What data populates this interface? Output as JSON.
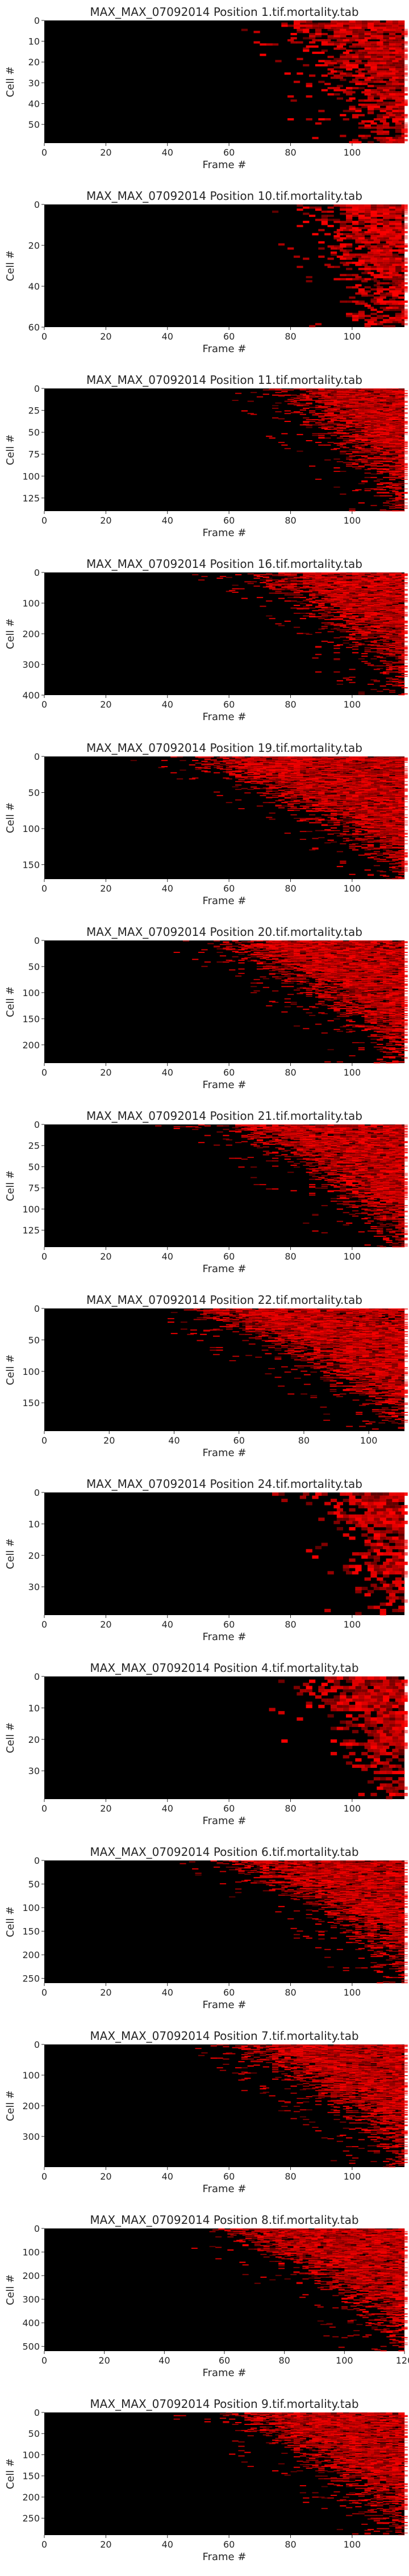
{
  "page": {
    "background": "#ffffff",
    "cell_color": "#ff0000",
    "background_color": "#000000"
  },
  "chart_data": [
    {
      "type": "heatmap",
      "title": "MAX_MAX_07092014 Position 1.tif.mortality.tab",
      "xlabel": "Frame #",
      "ylabel": "Cell #",
      "xlim": [
        0,
        117
      ],
      "ylim": [
        59,
        0
      ],
      "xticks": [
        0,
        20,
        40,
        60,
        80,
        100
      ],
      "yticks": [
        0,
        10,
        20,
        30,
        40,
        50
      ],
      "x_tick_labels": [
        "0",
        "20",
        "40",
        "60",
        "80",
        "100"
      ],
      "y_tick_labels": [
        "0",
        "10",
        "20",
        "30",
        "40",
        "50"
      ],
      "rows": 59,
      "frames": 117,
      "onset_early": 75,
      "onset_late": 100,
      "grid": false
    },
    {
      "type": "heatmap",
      "title": "MAX_MAX_07092014 Position 10.tif.mortality.tab",
      "xlabel": "Frame #",
      "ylabel": "Cell #",
      "xlim": [
        0,
        117
      ],
      "ylim": [
        60,
        0
      ],
      "xticks": [
        0,
        20,
        40,
        60,
        80,
        100
      ],
      "yticks": [
        0,
        20,
        40,
        60
      ],
      "x_tick_labels": [
        "0",
        "20",
        "40",
        "60",
        "80",
        "100"
      ],
      "y_tick_labels": [
        "0",
        "20",
        "40",
        "60"
      ],
      "rows": 60,
      "frames": 117,
      "onset_early": 82,
      "onset_late": 100,
      "grid": false
    },
    {
      "type": "heatmap",
      "title": "MAX_MAX_07092014 Position 11.tif.mortality.tab",
      "xlabel": "Frame #",
      "ylabel": "Cell #",
      "xlim": [
        0,
        117
      ],
      "ylim": [
        140,
        0
      ],
      "xticks": [
        0,
        20,
        40,
        60,
        80,
        100
      ],
      "yticks": [
        0,
        25,
        50,
        75,
        100,
        125
      ],
      "x_tick_labels": [
        "0",
        "20",
        "40",
        "60",
        "80",
        "100"
      ],
      "y_tick_labels": [
        "0",
        "25",
        "50",
        "75",
        "100",
        "125"
      ],
      "rows": 140,
      "frames": 117,
      "onset_early": 70,
      "onset_late": 108,
      "grid": false
    },
    {
      "type": "heatmap",
      "title": "MAX_MAX_07092014 Position 16.tif.mortality.tab",
      "xlabel": "Frame #",
      "ylabel": "Cell #",
      "xlim": [
        0,
        117
      ],
      "ylim": [
        400,
        0
      ],
      "xticks": [
        0,
        20,
        40,
        60,
        80,
        100
      ],
      "yticks": [
        0,
        100,
        200,
        300,
        400
      ],
      "x_tick_labels": [
        "0",
        "20",
        "40",
        "60",
        "80",
        "100"
      ],
      "y_tick_labels": [
        "0",
        "100",
        "200",
        "300",
        "400"
      ],
      "rows": 400,
      "frames": 117,
      "onset_early": 62,
      "onset_late": 112,
      "grid": false
    },
    {
      "type": "heatmap",
      "title": "MAX_MAX_07092014 Position 19.tif.mortality.tab",
      "xlabel": "Frame #",
      "ylabel": "Cell #",
      "xlim": [
        0,
        117
      ],
      "ylim": [
        170,
        0
      ],
      "xticks": [
        0,
        20,
        40,
        60,
        80,
        100
      ],
      "yticks": [
        0,
        50,
        100,
        150
      ],
      "x_tick_labels": [
        "0",
        "20",
        "40",
        "60",
        "80",
        "100"
      ],
      "y_tick_labels": [
        "0",
        "50",
        "100",
        "150"
      ],
      "rows": 170,
      "frames": 117,
      "onset_early": 40,
      "onset_late": 110,
      "grid": false
    },
    {
      "type": "heatmap",
      "title": "MAX_MAX_07092014 Position 20.tif.mortality.tab",
      "xlabel": "Frame #",
      "ylabel": "Cell #",
      "xlim": [
        0,
        117
      ],
      "ylim": [
        235,
        0
      ],
      "xticks": [
        0,
        20,
        40,
        60,
        80,
        100
      ],
      "yticks": [
        0,
        50,
        100,
        150,
        200
      ],
      "x_tick_labels": [
        "0",
        "20",
        "40",
        "60",
        "80",
        "100"
      ],
      "y_tick_labels": [
        "0",
        "50",
        "100",
        "150",
        "200"
      ],
      "rows": 235,
      "frames": 117,
      "onset_early": 50,
      "onset_late": 110,
      "grid": false
    },
    {
      "type": "heatmap",
      "title": "MAX_MAX_07092014 Position 21.tif.mortality.tab",
      "xlabel": "Frame #",
      "ylabel": "Cell #",
      "xlim": [
        0,
        117
      ],
      "ylim": [
        145,
        0
      ],
      "xticks": [
        0,
        20,
        40,
        60,
        80,
        100
      ],
      "yticks": [
        0,
        25,
        50,
        75,
        100,
        125
      ],
      "x_tick_labels": [
        "0",
        "20",
        "40",
        "60",
        "80",
        "100"
      ],
      "y_tick_labels": [
        "0",
        "25",
        "50",
        "75",
        "100",
        "125"
      ],
      "rows": 145,
      "frames": 117,
      "onset_early": 55,
      "onset_late": 108,
      "grid": false
    },
    {
      "type": "heatmap",
      "title": "MAX_MAX_07092014 Position 22.tif.mortality.tab",
      "xlabel": "Frame #",
      "ylabel": "Cell #",
      "xlim": [
        0,
        111
      ],
      "ylim": [
        195,
        0
      ],
      "xticks": [
        0,
        20,
        40,
        60,
        80,
        100
      ],
      "yticks": [
        0,
        50,
        100,
        150
      ],
      "x_tick_labels": [
        "0",
        "20",
        "40",
        "60",
        "80",
        "100"
      ],
      "y_tick_labels": [
        "0",
        "50",
        "100",
        "150"
      ],
      "rows": 195,
      "frames": 111,
      "onset_early": 40,
      "onset_late": 105,
      "grid": false
    },
    {
      "type": "heatmap",
      "title": "MAX_MAX_07092014 Position 24.tif.mortality.tab",
      "xlabel": "Frame #",
      "ylabel": "Cell #",
      "xlim": [
        0,
        117
      ],
      "ylim": [
        39,
        0
      ],
      "xticks": [
        0,
        20,
        40,
        60,
        80,
        100
      ],
      "yticks": [
        0,
        10,
        20,
        30
      ],
      "x_tick_labels": [
        "0",
        "20",
        "40",
        "60",
        "80",
        "100"
      ],
      "y_tick_labels": [
        "0",
        "10",
        "20",
        "30"
      ],
      "rows": 39,
      "frames": 117,
      "onset_early": 85,
      "onset_late": 106,
      "grid": false
    },
    {
      "type": "heatmap",
      "title": "MAX_MAX_07092014 Position 4.tif.mortality.tab",
      "xlabel": "Frame #",
      "ylabel": "Cell #",
      "xlim": [
        0,
        117
      ],
      "ylim": [
        39,
        0
      ],
      "xticks": [
        0,
        20,
        40,
        60,
        80,
        100
      ],
      "yticks": [
        0,
        10,
        20,
        30
      ],
      "x_tick_labels": [
        "0",
        "20",
        "40",
        "60",
        "80",
        "100"
      ],
      "y_tick_labels": [
        "0",
        "10",
        "20",
        "30"
      ],
      "rows": 39,
      "frames": 117,
      "onset_early": 80,
      "onset_late": 104,
      "grid": false
    },
    {
      "type": "heatmap",
      "title": "MAX_MAX_07092014 Position 6.tif.mortality.tab",
      "xlabel": "Frame #",
      "ylabel": "Cell #",
      "xlim": [
        0,
        117
      ],
      "ylim": [
        260,
        0
      ],
      "xticks": [
        0,
        20,
        40,
        60,
        80,
        100
      ],
      "yticks": [
        0,
        50,
        100,
        150,
        200,
        250
      ],
      "x_tick_labels": [
        "0",
        "20",
        "40",
        "60",
        "80",
        "100"
      ],
      "y_tick_labels": [
        "0",
        "50",
        "100",
        "150",
        "200",
        "250"
      ],
      "rows": 260,
      "frames": 117,
      "onset_early": 55,
      "onset_late": 112,
      "grid": false
    },
    {
      "type": "heatmap",
      "title": "MAX_MAX_07092014 Position 7.tif.mortality.tab",
      "xlabel": "Frame #",
      "ylabel": "Cell #",
      "xlim": [
        0,
        117
      ],
      "ylim": [
        400,
        0
      ],
      "xticks": [
        0,
        20,
        40,
        60,
        80,
        100
      ],
      "yticks": [
        0,
        100,
        200,
        300
      ],
      "x_tick_labels": [
        "0",
        "20",
        "40",
        "60",
        "80",
        "100"
      ],
      "y_tick_labels": [
        "0",
        "100",
        "200",
        "300"
      ],
      "rows": 400,
      "frames": 117,
      "onset_early": 55,
      "onset_late": 112,
      "grid": false
    },
    {
      "type": "heatmap",
      "title": "MAX_MAX_07092014 Position 8.tif.mortality.tab",
      "xlabel": "Frame #",
      "ylabel": "Cell #",
      "xlim": [
        0,
        120
      ],
      "ylim": [
        520,
        0
      ],
      "xticks": [
        0,
        20,
        40,
        60,
        80,
        100,
        120
      ],
      "yticks": [
        0,
        100,
        200,
        300,
        400,
        500
      ],
      "x_tick_labels": [
        "0",
        "20",
        "40",
        "60",
        "80",
        "100",
        "120"
      ],
      "y_tick_labels": [
        "0",
        "100",
        "200",
        "300",
        "400",
        "500"
      ],
      "rows": 520,
      "frames": 120,
      "onset_early": 55,
      "onset_late": 115,
      "grid": false
    },
    {
      "type": "heatmap",
      "title": "MAX_MAX_07092014 Position 9.tif.mortality.tab",
      "xlabel": "Frame #",
      "ylabel": "Cell #",
      "xlim": [
        0,
        117
      ],
      "ylim": [
        290,
        0
      ],
      "xticks": [
        0,
        20,
        40,
        60,
        80,
        100
      ],
      "yticks": [
        0,
        50,
        100,
        150,
        200,
        250
      ],
      "x_tick_labels": [
        "0",
        "20",
        "40",
        "60",
        "80",
        "100"
      ],
      "y_tick_labels": [
        "0",
        "50",
        "100",
        "150",
        "200",
        "250"
      ],
      "rows": 290,
      "frames": 117,
      "onset_early": 55,
      "onset_late": 110,
      "grid": false
    }
  ]
}
